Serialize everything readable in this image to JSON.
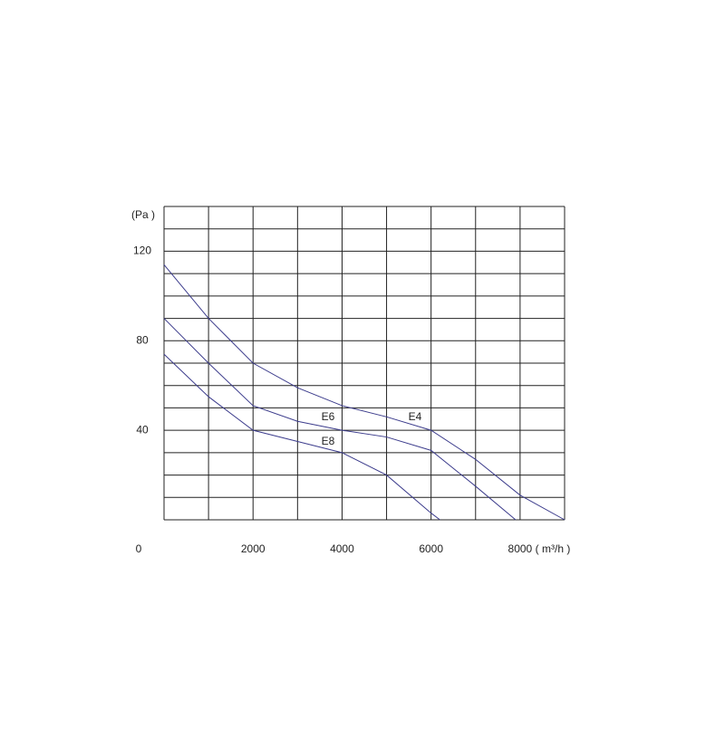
{
  "chart_data": {
    "type": "line",
    "y_label": "(Pa )",
    "x_label": "( m³/h )",
    "xlim": [
      0,
      9000
    ],
    "ylim": [
      0,
      140
    ],
    "xticks": [
      0,
      2000,
      4000,
      6000,
      8000
    ],
    "yticks": [
      40,
      80,
      120
    ],
    "xgrid_step": 1000,
    "ygrid_step": 10,
    "grid": true,
    "series": [
      {
        "name": "E4",
        "color": "#3c3c8c",
        "x": [
          0,
          1000,
          2000,
          3000,
          4000,
          5000,
          6000,
          7000,
          8000,
          9000
        ],
        "values": [
          114,
          90,
          70,
          59,
          51,
          46,
          40,
          27,
          11,
          0
        ]
      },
      {
        "name": "E6",
        "color": "#3c3c8c",
        "x": [
          0,
          1000,
          2000,
          3000,
          4000,
          5000,
          6000,
          7000,
          7900
        ],
        "values": [
          90,
          70,
          51,
          44,
          40,
          37,
          31,
          15,
          0
        ]
      },
      {
        "name": "E8",
        "color": "#3c3c8c",
        "x": [
          0,
          1000,
          2000,
          3000,
          4000,
          5000,
          6000,
          6200
        ],
        "values": [
          74,
          55,
          40,
          35,
          30,
          20,
          3,
          0
        ]
      }
    ]
  }
}
